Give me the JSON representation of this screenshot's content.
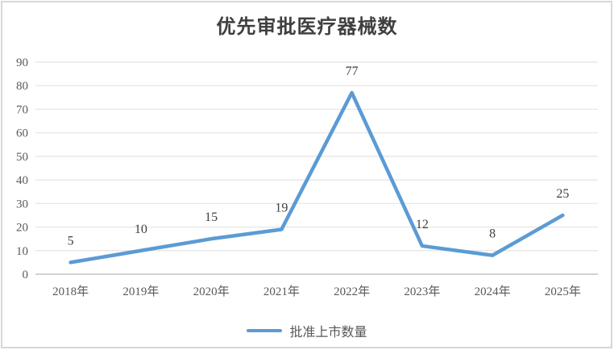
{
  "chart_data": {
    "type": "line",
    "title": "优先审批医疗器械数",
    "categories": [
      "2018年",
      "2019年",
      "2020年",
      "2021年",
      "2022年",
      "2023年",
      "2024年",
      "2025年"
    ],
    "series": [
      {
        "name": "批准上市数量",
        "values": [
          5,
          10,
          15,
          19,
          77,
          12,
          8,
          25
        ]
      }
    ],
    "data_labels_shown": true,
    "ylim": [
      0,
      90
    ],
    "yticks": [
      0,
      10,
      20,
      30,
      40,
      50,
      60,
      70,
      80,
      90
    ],
    "grid": true,
    "legend_position": "bottom",
    "colors": {
      "line": "#5B9BD5",
      "gridline": "#e4e4e4",
      "axis_line": "#c3c3c3",
      "tick_label": "#595959",
      "data_label": "#404040",
      "title": "#3f3f3f",
      "frame_border": "#d7d7d7"
    }
  }
}
